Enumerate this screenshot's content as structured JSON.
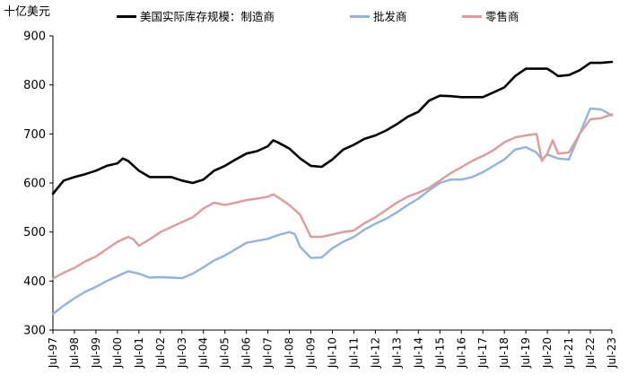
{
  "chart_data": {
    "type": "line",
    "unit_label": "十亿美元",
    "ylim": [
      300,
      900
    ],
    "yticks": [
      300,
      400,
      500,
      600,
      700,
      800,
      900
    ],
    "x_tick_labels": [
      "Jul-97",
      "Jul-98",
      "Jul-99",
      "Jul-00",
      "Jul-01",
      "Jul-02",
      "Jul-03",
      "Jul-04",
      "Jul-05",
      "Jul-06",
      "Jul-07",
      "Jul-08",
      "Jul-09",
      "Jul-10",
      "Jul-11",
      "Jul-12",
      "Jul-13",
      "Jul-14",
      "Jul-15",
      "Jul-16",
      "Jul-17",
      "Jul-18",
      "Jul-19",
      "Jul-20",
      "Jul-21",
      "Jul-22",
      "Jul-23"
    ],
    "x_range": [
      "1997-07",
      "2023-07"
    ],
    "grid": false,
    "legend_position": "top",
    "series": [
      {
        "name": "美国实际库存规模：制造商",
        "color": "#000000",
        "points": [
          [
            "1997-07",
            578
          ],
          [
            "1998-01",
            605
          ],
          [
            "1998-07",
            612
          ],
          [
            "1999-01",
            618
          ],
          [
            "1999-07",
            625
          ],
          [
            "2000-01",
            635
          ],
          [
            "2000-07",
            640
          ],
          [
            "2000-10",
            650
          ],
          [
            "2001-01",
            645
          ],
          [
            "2001-07",
            625
          ],
          [
            "2002-01",
            612
          ],
          [
            "2002-07",
            612
          ],
          [
            "2003-01",
            612
          ],
          [
            "2003-07",
            605
          ],
          [
            "2004-01",
            600
          ],
          [
            "2004-07",
            607
          ],
          [
            "2005-01",
            625
          ],
          [
            "2005-07",
            635
          ],
          [
            "2006-01",
            648
          ],
          [
            "2006-07",
            660
          ],
          [
            "2007-01",
            665
          ],
          [
            "2007-07",
            675
          ],
          [
            "2007-10",
            687
          ],
          [
            "2008-01",
            682
          ],
          [
            "2008-07",
            670
          ],
          [
            "2009-01",
            650
          ],
          [
            "2009-07",
            635
          ],
          [
            "2010-01",
            633
          ],
          [
            "2010-07",
            648
          ],
          [
            "2011-01",
            668
          ],
          [
            "2011-07",
            678
          ],
          [
            "2012-01",
            690
          ],
          [
            "2012-07",
            697
          ],
          [
            "2013-01",
            707
          ],
          [
            "2013-07",
            720
          ],
          [
            "2014-01",
            735
          ],
          [
            "2014-07",
            745
          ],
          [
            "2015-01",
            768
          ],
          [
            "2015-07",
            778
          ],
          [
            "2016-01",
            777
          ],
          [
            "2016-07",
            775
          ],
          [
            "2017-01",
            775
          ],
          [
            "2017-07",
            775
          ],
          [
            "2018-01",
            785
          ],
          [
            "2018-07",
            795
          ],
          [
            "2019-01",
            818
          ],
          [
            "2019-07",
            833
          ],
          [
            "2020-01",
            833
          ],
          [
            "2020-07",
            833
          ],
          [
            "2020-10",
            826
          ],
          [
            "2021-01",
            818
          ],
          [
            "2021-07",
            820
          ],
          [
            "2022-01",
            830
          ],
          [
            "2022-07",
            845
          ],
          [
            "2023-01",
            845
          ],
          [
            "2023-07",
            847
          ]
        ]
      },
      {
        "name": "批发商",
        "color": "#8fb4de",
        "points": [
          [
            "1997-07",
            333
          ],
          [
            "1998-01",
            350
          ],
          [
            "1998-07",
            365
          ],
          [
            "1999-01",
            378
          ],
          [
            "1999-07",
            388
          ],
          [
            "2000-01",
            400
          ],
          [
            "2000-07",
            410
          ],
          [
            "2001-01",
            420
          ],
          [
            "2001-07",
            415
          ],
          [
            "2002-01",
            407
          ],
          [
            "2002-07",
            408
          ],
          [
            "2003-01",
            407
          ],
          [
            "2003-07",
            406
          ],
          [
            "2004-01",
            415
          ],
          [
            "2004-07",
            428
          ],
          [
            "2005-01",
            442
          ],
          [
            "2005-07",
            452
          ],
          [
            "2006-01",
            465
          ],
          [
            "2006-07",
            478
          ],
          [
            "2007-01",
            482
          ],
          [
            "2007-07",
            486
          ],
          [
            "2008-01",
            494
          ],
          [
            "2008-07",
            500
          ],
          [
            "2008-10",
            496
          ],
          [
            "2009-01",
            470
          ],
          [
            "2009-07",
            447
          ],
          [
            "2010-01",
            448
          ],
          [
            "2010-07",
            467
          ],
          [
            "2011-01",
            480
          ],
          [
            "2011-07",
            490
          ],
          [
            "2012-01",
            505
          ],
          [
            "2012-07",
            517
          ],
          [
            "2013-01",
            527
          ],
          [
            "2013-07",
            540
          ],
          [
            "2014-01",
            555
          ],
          [
            "2014-07",
            568
          ],
          [
            "2015-01",
            585
          ],
          [
            "2015-07",
            600
          ],
          [
            "2016-01",
            607
          ],
          [
            "2016-07",
            607
          ],
          [
            "2017-01",
            612
          ],
          [
            "2017-07",
            622
          ],
          [
            "2018-01",
            635
          ],
          [
            "2018-07",
            648
          ],
          [
            "2019-01",
            668
          ],
          [
            "2019-07",
            673
          ],
          [
            "2020-01",
            662
          ],
          [
            "2020-04",
            648
          ],
          [
            "2020-07",
            658
          ],
          [
            "2021-01",
            650
          ],
          [
            "2021-07",
            648
          ],
          [
            "2022-01",
            700
          ],
          [
            "2022-07",
            752
          ],
          [
            "2023-01",
            750
          ],
          [
            "2023-07",
            738
          ]
        ]
      },
      {
        "name": "零售商",
        "color": "#e09a9a",
        "points": [
          [
            "1997-07",
            405
          ],
          [
            "1998-01",
            417
          ],
          [
            "1998-07",
            427
          ],
          [
            "1999-01",
            440
          ],
          [
            "1999-07",
            450
          ],
          [
            "2000-01",
            465
          ],
          [
            "2000-07",
            480
          ],
          [
            "2001-01",
            490
          ],
          [
            "2001-04",
            485
          ],
          [
            "2001-07",
            472
          ],
          [
            "2002-01",
            485
          ],
          [
            "2002-07",
            500
          ],
          [
            "2003-01",
            510
          ],
          [
            "2003-07",
            520
          ],
          [
            "2004-01",
            530
          ],
          [
            "2004-07",
            548
          ],
          [
            "2005-01",
            560
          ],
          [
            "2005-07",
            555
          ],
          [
            "2006-01",
            560
          ],
          [
            "2006-07",
            565
          ],
          [
            "2007-01",
            568
          ],
          [
            "2007-07",
            572
          ],
          [
            "2007-10",
            577
          ],
          [
            "2008-01",
            570
          ],
          [
            "2008-07",
            555
          ],
          [
            "2009-01",
            535
          ],
          [
            "2009-07",
            490
          ],
          [
            "2010-01",
            490
          ],
          [
            "2010-07",
            495
          ],
          [
            "2011-01",
            500
          ],
          [
            "2011-07",
            503
          ],
          [
            "2012-01",
            518
          ],
          [
            "2012-07",
            530
          ],
          [
            "2013-01",
            545
          ],
          [
            "2013-07",
            560
          ],
          [
            "2014-01",
            572
          ],
          [
            "2014-07",
            580
          ],
          [
            "2015-01",
            590
          ],
          [
            "2015-07",
            605
          ],
          [
            "2016-01",
            620
          ],
          [
            "2016-07",
            632
          ],
          [
            "2017-01",
            645
          ],
          [
            "2017-07",
            655
          ],
          [
            "2018-01",
            667
          ],
          [
            "2018-07",
            683
          ],
          [
            "2019-01",
            693
          ],
          [
            "2019-07",
            697
          ],
          [
            "2020-01",
            700
          ],
          [
            "2020-04",
            645
          ],
          [
            "2020-07",
            660
          ],
          [
            "2020-10",
            687
          ],
          [
            "2021-01",
            660
          ],
          [
            "2021-07",
            662
          ],
          [
            "2022-01",
            700
          ],
          [
            "2022-07",
            730
          ],
          [
            "2023-01",
            732
          ],
          [
            "2023-07",
            740
          ]
        ]
      }
    ]
  }
}
